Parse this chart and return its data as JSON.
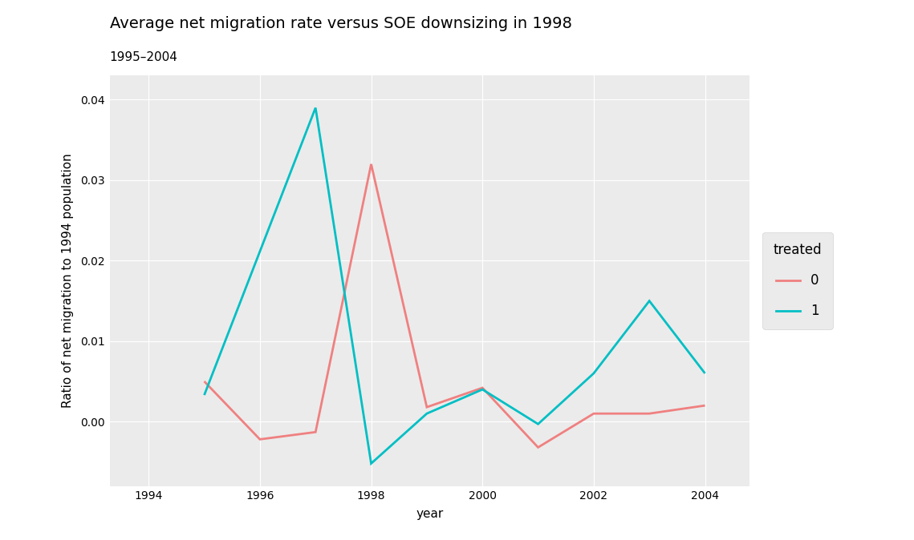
{
  "title": "Average net migration rate versus SOE downsizing in 1998",
  "subtitle": "1995–2004",
  "xlabel": "year",
  "ylabel": "Ratio of net migration to 1994 population",
  "background_color": "#EBEBEB",
  "plot_bg_color": "#EBEBEB",
  "fig_bg_color": "#FFFFFF",
  "grid_color": "#FFFFFF",
  "series": [
    {
      "label": "0",
      "color": "#F08080",
      "years": [
        1995,
        1996,
        1997,
        1998,
        1999,
        2000,
        2001,
        2002,
        2003,
        2004
      ],
      "values": [
        0.005,
        -0.0022,
        -0.0013,
        0.032,
        0.0018,
        0.0042,
        -0.0032,
        0.001,
        0.001,
        0.002
      ]
    },
    {
      "label": "1",
      "color": "#00BFC4",
      "years": [
        1995,
        1997,
        1998,
        1999,
        2000,
        2001,
        2002,
        2003,
        2004
      ],
      "values": [
        0.0033,
        0.039,
        -0.0052,
        0.001,
        0.004,
        -0.0003,
        0.006,
        0.015,
        0.006
      ]
    }
  ],
  "xlim": [
    1993.3,
    2004.8
  ],
  "ylim": [
    -0.008,
    0.043
  ],
  "yticks": [
    0.0,
    0.01,
    0.02,
    0.03,
    0.04
  ],
  "ytick_labels": [
    "0.00",
    "0.01",
    "0.02",
    "0.03",
    "0.04"
  ],
  "xticks": [
    1994,
    1996,
    1998,
    2000,
    2002,
    2004
  ],
  "legend_title": "treated",
  "title_fontsize": 14,
  "subtitle_fontsize": 11,
  "axis_label_fontsize": 11,
  "tick_fontsize": 10,
  "legend_fontsize": 12,
  "line_width": 2.0
}
